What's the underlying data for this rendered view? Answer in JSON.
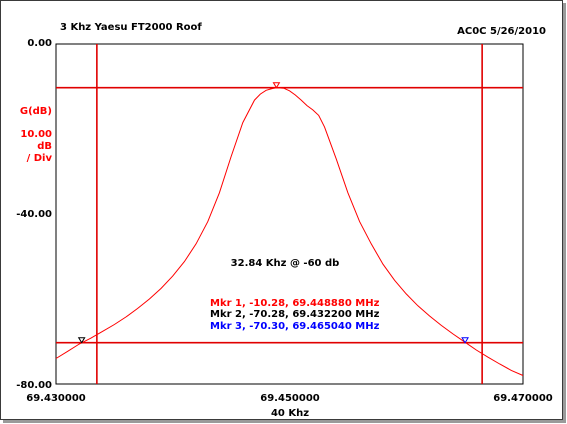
{
  "header": {
    "title": "3 Khz Yaesu FT2000 Roof",
    "right": "AC0C 5/26/2010"
  },
  "y_axis": {
    "label": "G(dB)",
    "scale": "10.00",
    "scale_unit": "dB",
    "scale_per": "/ Div"
  },
  "x_axis": {
    "span_label": "40 Khz"
  },
  "annotation": "32.84 Khz @ -60 db",
  "markers": [
    {
      "text": "Mkr 1, -10.28, 69.448880 MHz",
      "color": "#ff0000",
      "x": 69.44888,
      "y": -10.28
    },
    {
      "text": "Mkr 2, -70.28, 69.432200 MHz",
      "color": "#000000",
      "x": 69.4322,
      "y": -70.28
    },
    {
      "text": "Mkr 3, -70.30, 69.465040 MHz",
      "color": "#0000ff",
      "x": 69.46504,
      "y": -70.3
    }
  ],
  "chart_data": {
    "type": "line",
    "title": "3 Khz Yaesu FT2000 Roof",
    "xlabel": "40 Khz",
    "ylabel": "G(dB)",
    "xlim": [
      69.43,
      69.47
    ],
    "ylim": [
      -80,
      0
    ],
    "x_ticks": [
      "69.430000",
      "69.450000",
      "69.470000"
    ],
    "y_ticks": [
      "0.00",
      "-40.00",
      "-80.00"
    ],
    "grid": false,
    "series": [
      {
        "color": "#ff0000",
        "x": [
          69.43,
          69.431,
          69.432,
          69.433,
          69.434,
          69.435,
          69.436,
          69.437,
          69.438,
          69.439,
          69.44,
          69.441,
          69.442,
          69.443,
          69.444,
          69.445,
          69.446,
          69.447,
          69.4475,
          69.448,
          69.4485,
          69.4489,
          69.4495,
          69.45,
          69.4505,
          69.451,
          69.4515,
          69.452,
          69.4525,
          69.453,
          69.454,
          69.455,
          69.456,
          69.457,
          69.458,
          69.459,
          69.46,
          69.461,
          69.462,
          69.463,
          69.464,
          69.465,
          69.466,
          69.467,
          69.468,
          69.469,
          69.47
        ],
        "y": [
          -74.0,
          -72.3,
          -70.6,
          -69.2,
          -67.6,
          -66.0,
          -64.2,
          -62.2,
          -60.0,
          -57.5,
          -54.6,
          -51.2,
          -47.0,
          -41.8,
          -35.0,
          -26.5,
          -18.5,
          -13.2,
          -11.8,
          -10.9,
          -10.5,
          -10.3,
          -10.4,
          -11.0,
          -12.0,
          -13.2,
          -14.5,
          -15.5,
          -16.8,
          -19.5,
          -27.0,
          -35.0,
          -41.8,
          -47.0,
          -51.8,
          -55.6,
          -58.8,
          -61.6,
          -64.0,
          -66.2,
          -68.2,
          -70.1,
          -72.0,
          -73.7,
          -75.3,
          -76.8,
          -78.0
        ]
      }
    ],
    "cursors": {
      "x": [
        69.4335,
        69.4665
      ],
      "y": [
        -10.28,
        -70.28
      ]
    }
  }
}
